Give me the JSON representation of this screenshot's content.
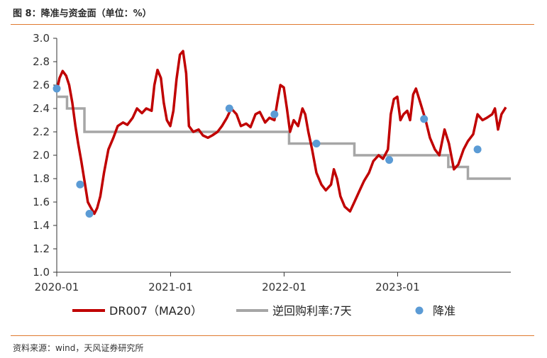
{
  "title": "图 8：降准与资金面（单位：%）",
  "source": "资料来源：wind，天风证券研究所",
  "chart_data": {
    "type": "line",
    "x_start": "2020-01",
    "x_end": "2023-12",
    "x_tick_labels": [
      "2020-01",
      "2021-01",
      "2022-01",
      "2023-01"
    ],
    "ylim": [
      1.0,
      3.0
    ],
    "y_ticks": [
      "1.0",
      "1.2",
      "1.4",
      "1.6",
      "1.8",
      "2.0",
      "2.2",
      "2.4",
      "2.6",
      "2.8",
      "3.0"
    ],
    "legend_position": "bottom",
    "colors": {
      "dr007": "#c00000",
      "reverse_repo": "#a6a6a6",
      "rrr_cut": "#5b9bd5"
    },
    "series": [
      {
        "name": "DR007（MA20）",
        "kind": "line",
        "points": [
          [
            "2020-01-01",
            2.55
          ],
          [
            "2020-01-10",
            2.66
          ],
          [
            "2020-01-20",
            2.72
          ],
          [
            "2020-01-31",
            2.68
          ],
          [
            "2020-02-10",
            2.6
          ],
          [
            "2020-02-20",
            2.45
          ],
          [
            "2020-03-01",
            2.25
          ],
          [
            "2020-03-10",
            2.1
          ],
          [
            "2020-03-20",
            1.95
          ],
          [
            "2020-04-01",
            1.75
          ],
          [
            "2020-04-10",
            1.6
          ],
          [
            "2020-04-20",
            1.55
          ],
          [
            "2020-05-01",
            1.5
          ],
          [
            "2020-05-10",
            1.55
          ],
          [
            "2020-05-20",
            1.65
          ],
          [
            "2020-06-01",
            1.85
          ],
          [
            "2020-06-15",
            2.05
          ],
          [
            "2020-07-01",
            2.15
          ],
          [
            "2020-07-15",
            2.25
          ],
          [
            "2020-08-01",
            2.28
          ],
          [
            "2020-08-15",
            2.26
          ],
          [
            "2020-09-01",
            2.32
          ],
          [
            "2020-09-15",
            2.4
          ],
          [
            "2020-10-01",
            2.36
          ],
          [
            "2020-10-15",
            2.4
          ],
          [
            "2020-11-01",
            2.38
          ],
          [
            "2020-11-10",
            2.6
          ],
          [
            "2020-11-20",
            2.73
          ],
          [
            "2020-12-01",
            2.66
          ],
          [
            "2020-12-10",
            2.45
          ],
          [
            "2020-12-20",
            2.3
          ],
          [
            "2020-12-31",
            2.25
          ],
          [
            "2021-01-10",
            2.38
          ],
          [
            "2021-01-20",
            2.65
          ],
          [
            "2021-01-31",
            2.86
          ],
          [
            "2021-02-10",
            2.89
          ],
          [
            "2021-02-20",
            2.7
          ],
          [
            "2021-03-01",
            2.25
          ],
          [
            "2021-03-15",
            2.2
          ],
          [
            "2021-04-01",
            2.22
          ],
          [
            "2021-04-15",
            2.17
          ],
          [
            "2021-05-01",
            2.15
          ],
          [
            "2021-05-15",
            2.17
          ],
          [
            "2021-06-01",
            2.2
          ],
          [
            "2021-06-15",
            2.25
          ],
          [
            "2021-07-01",
            2.32
          ],
          [
            "2021-07-15",
            2.4
          ],
          [
            "2021-08-01",
            2.35
          ],
          [
            "2021-08-15",
            2.25
          ],
          [
            "2021-09-01",
            2.27
          ],
          [
            "2021-09-15",
            2.24
          ],
          [
            "2021-10-01",
            2.35
          ],
          [
            "2021-10-15",
            2.37
          ],
          [
            "2021-11-01",
            2.28
          ],
          [
            "2021-11-15",
            2.32
          ],
          [
            "2021-12-01",
            2.3
          ],
          [
            "2021-12-10",
            2.45
          ],
          [
            "2021-12-20",
            2.6
          ],
          [
            "2021-12-31",
            2.58
          ],
          [
            "2022-01-10",
            2.4
          ],
          [
            "2022-01-20",
            2.2
          ],
          [
            "2022-02-01",
            2.3
          ],
          [
            "2022-02-15",
            2.25
          ],
          [
            "2022-03-01",
            2.4
          ],
          [
            "2022-03-10",
            2.35
          ],
          [
            "2022-03-20",
            2.2
          ],
          [
            "2022-04-01",
            2.05
          ],
          [
            "2022-04-15",
            1.85
          ],
          [
            "2022-05-01",
            1.75
          ],
          [
            "2022-05-15",
            1.7
          ],
          [
            "2022-06-01",
            1.75
          ],
          [
            "2022-06-10",
            1.88
          ],
          [
            "2022-06-20",
            1.8
          ],
          [
            "2022-07-01",
            1.65
          ],
          [
            "2022-07-15",
            1.56
          ],
          [
            "2022-08-01",
            1.52
          ],
          [
            "2022-08-15",
            1.6
          ],
          [
            "2022-09-01",
            1.7
          ],
          [
            "2022-09-15",
            1.78
          ],
          [
            "2022-10-01",
            1.85
          ],
          [
            "2022-10-15",
            1.95
          ],
          [
            "2022-11-01",
            2.0
          ],
          [
            "2022-11-15",
            1.97
          ],
          [
            "2022-12-01",
            2.05
          ],
          [
            "2022-12-10",
            2.35
          ],
          [
            "2022-12-20",
            2.48
          ],
          [
            "2022-12-31",
            2.5
          ],
          [
            "2023-01-10",
            2.3
          ],
          [
            "2023-01-20",
            2.35
          ],
          [
            "2023-02-01",
            2.38
          ],
          [
            "2023-02-10",
            2.3
          ],
          [
            "2023-02-20",
            2.52
          ],
          [
            "2023-03-01",
            2.57
          ],
          [
            "2023-03-15",
            2.45
          ],
          [
            "2023-04-01",
            2.3
          ],
          [
            "2023-04-15",
            2.15
          ],
          [
            "2023-05-01",
            2.05
          ],
          [
            "2023-05-15",
            2.0
          ],
          [
            "2023-06-01",
            2.22
          ],
          [
            "2023-06-15",
            2.1
          ],
          [
            "2023-07-01",
            1.88
          ],
          [
            "2023-07-15",
            1.92
          ],
          [
            "2023-08-01",
            2.05
          ],
          [
            "2023-08-15",
            2.12
          ],
          [
            "2023-09-01",
            2.18
          ],
          [
            "2023-09-15",
            2.35
          ],
          [
            "2023-10-01",
            2.3
          ],
          [
            "2023-10-15",
            2.32
          ],
          [
            "2023-11-01",
            2.35
          ],
          [
            "2023-11-10",
            2.4
          ],
          [
            "2023-11-20",
            2.22
          ],
          [
            "2023-12-01",
            2.35
          ],
          [
            "2023-12-15",
            2.41
          ]
        ]
      },
      {
        "name": "逆回购利率:7天",
        "kind": "step",
        "points": [
          [
            "2020-01-01",
            2.5
          ],
          [
            "2020-02-03",
            2.4
          ],
          [
            "2020-03-30",
            2.2
          ],
          [
            "2022-01-17",
            2.1
          ],
          [
            "2022-08-15",
            2.0
          ],
          [
            "2023-06-13",
            1.9
          ],
          [
            "2023-08-15",
            1.8
          ],
          [
            "2023-12-31",
            1.8
          ]
        ]
      },
      {
        "name": "降准",
        "kind": "scatter",
        "points": [
          [
            "2020-01-01",
            2.57
          ],
          [
            "2020-03-16",
            1.75
          ],
          [
            "2020-04-15",
            1.5
          ],
          [
            "2021-07-09",
            2.4
          ],
          [
            "2021-12-01",
            2.35
          ],
          [
            "2022-04-15",
            2.1
          ],
          [
            "2022-12-05",
            1.96
          ],
          [
            "2023-03-27",
            2.31
          ],
          [
            "2023-09-15",
            2.05
          ]
        ]
      }
    ]
  }
}
